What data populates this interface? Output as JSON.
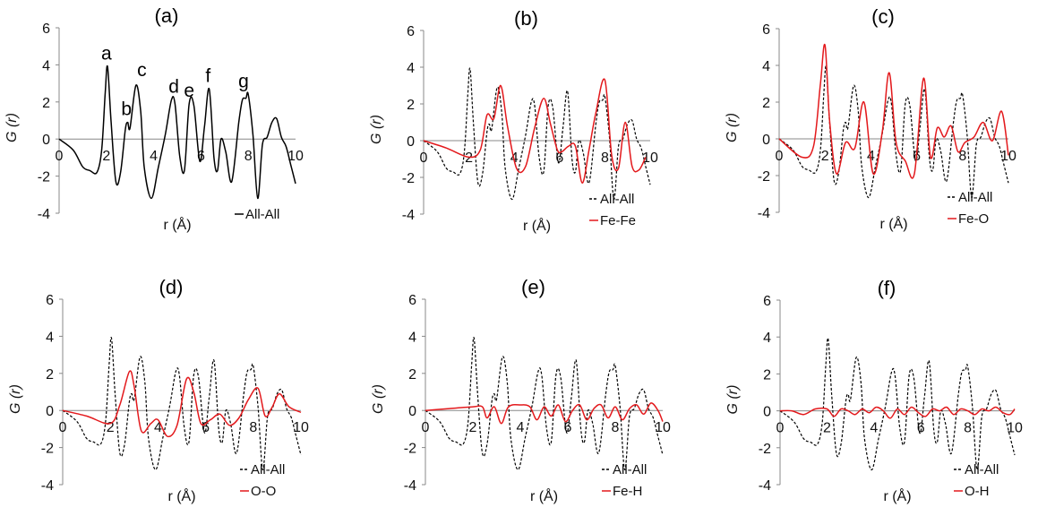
{
  "chart_data": [
    {
      "type": "line",
      "panel_label": "(a)",
      "xlabel": "r (Å)",
      "ylabel": "G (r)",
      "xlim": [
        0,
        10
      ],
      "ylim": [
        -4,
        6
      ],
      "x_ticks": [
        "0",
        "2",
        "4",
        "6",
        "8",
        "10"
      ],
      "y_ticks": [
        "6",
        "4",
        "2",
        "0",
        "-2",
        "-4"
      ],
      "legend_position": "bottom-right",
      "peak_labels": [
        {
          "text": "a",
          "x": 2.0,
          "y": 3.9
        },
        {
          "text": "b",
          "x": 2.85,
          "y": 0.9
        },
        {
          "text": "c",
          "x": 3.5,
          "y": 3.0
        },
        {
          "text": "d",
          "x": 4.85,
          "y": 2.1
        },
        {
          "text": "e",
          "x": 5.5,
          "y": 1.9
        },
        {
          "text": "f",
          "x": 6.3,
          "y": 2.7
        },
        {
          "text": "g",
          "x": 7.8,
          "y": 2.4
        }
      ],
      "series": [
        {
          "name": "All-All",
          "color": "#000000",
          "style": "solid",
          "x": "all_all.x",
          "y": "all_all.y"
        }
      ]
    },
    {
      "type": "line",
      "panel_label": "(b)",
      "xlabel": "r (Å)",
      "ylabel": "G (r)",
      "xlim": [
        0,
        10
      ],
      "ylim": [
        -4,
        6
      ],
      "x_ticks": [
        "0",
        "2",
        "4",
        "6",
        "8",
        "10"
      ],
      "y_ticks": [
        "6",
        "4",
        "2",
        "0",
        "-2",
        "-4"
      ],
      "legend_position": "bottom-right",
      "series": [
        {
          "name": "All-All",
          "color": "#000000",
          "style": "dashed",
          "x": "all_all.x",
          "y": "all_all.y"
        },
        {
          "name": "Fe-Fe",
          "color": "#e3191c",
          "style": "solid",
          "x": [
            0,
            1.0,
            2.0,
            2.5,
            2.8,
            3.1,
            3.4,
            3.7,
            4.1,
            4.5,
            4.9,
            5.3,
            5.6,
            5.9,
            6.1,
            6.4,
            6.7,
            7.0,
            7.3,
            7.6,
            8.0,
            8.3,
            8.6,
            8.9,
            9.2,
            9.5,
            9.8
          ],
          "y": [
            0,
            -0.4,
            -0.9,
            -0.5,
            1.4,
            1.2,
            3.0,
            0.8,
            -1.5,
            -1.4,
            0.7,
            2.3,
            0.9,
            -0.5,
            -0.6,
            -0.3,
            -0.3,
            -2.3,
            -0.5,
            1.5,
            3.3,
            -0.8,
            -1.5,
            1.0,
            -1.4,
            -1.6,
            -0.9
          ]
        }
      ]
    },
    {
      "type": "line",
      "panel_label": "(c)",
      "xlabel": "r (Å)",
      "ylabel": "G (r)",
      "xlim": [
        0,
        10
      ],
      "ylim": [
        -4,
        6
      ],
      "x_ticks": [
        "0",
        "2",
        "4",
        "6",
        "8",
        "10"
      ],
      "y_ticks": [
        "6",
        "4",
        "2",
        "0",
        "-2",
        "-4"
      ],
      "legend_position": "bottom-right",
      "series": [
        {
          "name": "All-All",
          "color": "#000000",
          "style": "dashed",
          "x": "all_all.x",
          "y": "all_all.y"
        },
        {
          "name": "Fe-O",
          "color": "#e3191c",
          "style": "solid",
          "x": [
            0,
            1.0,
            1.5,
            1.8,
            2.0,
            2.2,
            2.5,
            2.9,
            3.3,
            3.7,
            4.1,
            4.5,
            4.8,
            5.1,
            5.5,
            5.9,
            6.3,
            6.6,
            6.9,
            7.2,
            7.5,
            7.8,
            8.1,
            8.5,
            8.9,
            9.3,
            9.7,
            10.0
          ],
          "y": [
            0,
            -1.0,
            -0.4,
            3.0,
            5.1,
            1.0,
            -1.9,
            -0.2,
            -0.5,
            2.0,
            -1.9,
            0.4,
            3.6,
            -0.2,
            -1.2,
            -1.9,
            3.3,
            -1.0,
            0.6,
            0.1,
            0.7,
            -0.7,
            -0.2,
            0.1,
            0.9,
            -0.1,
            1.5,
            -0.9
          ]
        }
      ]
    },
    {
      "type": "line",
      "panel_label": "(d)",
      "xlabel": "r (Å)",
      "ylabel": "G (r)",
      "xlim": [
        0,
        10
      ],
      "ylim": [
        -4,
        6
      ],
      "x_ticks": [
        "0",
        "2",
        "4",
        "6",
        "8",
        "10"
      ],
      "y_ticks": [
        "6",
        "4",
        "2",
        "0",
        "-2",
        "-4"
      ],
      "legend_position": "bottom-right",
      "series": [
        {
          "name": "All-All",
          "color": "#000000",
          "style": "dashed",
          "x": "all_all.x",
          "y": "all_all.y"
        },
        {
          "name": "O-O",
          "color": "#e3191c",
          "style": "solid",
          "x": [
            0,
            1.0,
            2.0,
            2.4,
            2.8,
            3.0,
            3.3,
            3.7,
            4.0,
            4.4,
            4.8,
            5.2,
            5.5,
            5.8,
            6.2,
            6.6,
            7.0,
            7.4,
            7.8,
            8.2,
            8.5,
            8.8,
            9.1,
            9.5,
            10.0
          ],
          "y": [
            0,
            -0.3,
            -0.7,
            0.3,
            2.1,
            1.3,
            -1.1,
            -0.7,
            -0.5,
            -1.4,
            -0.8,
            1.7,
            1.0,
            -0.7,
            -0.5,
            -0.2,
            -0.8,
            -0.4,
            0.6,
            1.2,
            -0.3,
            0.2,
            0.9,
            0.2,
            -0.1
          ]
        }
      ]
    },
    {
      "type": "line",
      "panel_label": "(e)",
      "xlabel": "r (Å)",
      "ylabel": "G (r)",
      "xlim": [
        0,
        10
      ],
      "ylim": [
        -4,
        6
      ],
      "x_ticks": [
        "0",
        "2",
        "4",
        "6",
        "8",
        "10"
      ],
      "y_ticks": [
        "6",
        "4",
        "2",
        "0",
        "-2",
        "-4"
      ],
      "legend_position": "bottom-right",
      "series": [
        {
          "name": "All-All",
          "color": "#000000",
          "style": "dashed",
          "x": "all_all.x",
          "y": "all_all.y"
        },
        {
          "name": "Fe-H",
          "color": "#e3191c",
          "style": "solid",
          "x": [
            0,
            1.0,
            2.0,
            2.4,
            2.6,
            2.9,
            3.2,
            3.5,
            4.0,
            4.4,
            4.7,
            5.0,
            5.3,
            5.6,
            5.9,
            6.2,
            6.5,
            6.8,
            7.1,
            7.4,
            7.7,
            8.0,
            8.3,
            8.6,
            8.9,
            9.2,
            9.5,
            9.8,
            10.0
          ],
          "y": [
            0,
            0.1,
            0.2,
            0.2,
            -0.4,
            0.2,
            -0.7,
            0.2,
            0.3,
            0.2,
            -0.5,
            0.2,
            -0.3,
            0.3,
            -0.6,
            0.0,
            0.3,
            -0.5,
            0.1,
            0.3,
            -0.4,
            0.2,
            -0.5,
            0.1,
            0.3,
            -0.2,
            0.4,
            0.0,
            -0.6
          ]
        }
      ]
    },
    {
      "type": "line",
      "panel_label": "(f)",
      "xlabel": "r (Å)",
      "ylabel": "G (r)",
      "xlim": [
        0,
        10
      ],
      "ylim": [
        -4,
        6
      ],
      "x_ticks": [
        "0",
        "2",
        "4",
        "6",
        "8",
        "10"
      ],
      "y_ticks": [
        "6",
        "4",
        "2",
        "0",
        "-2",
        "-4"
      ],
      "legend_position": "bottom-right",
      "series": [
        {
          "name": "All-All",
          "color": "#000000",
          "style": "dashed",
          "x": "all_all.x",
          "y": "all_all.y"
        },
        {
          "name": "O-H",
          "color": "#e3191c",
          "style": "solid",
          "x": [
            0,
            0.5,
            1.0,
            1.5,
            2.0,
            2.3,
            2.6,
            2.9,
            3.2,
            3.5,
            3.8,
            4.1,
            4.4,
            4.7,
            5.0,
            5.3,
            5.6,
            5.9,
            6.2,
            6.5,
            6.8,
            7.1,
            7.4,
            7.7,
            8.0,
            8.3,
            8.6,
            8.9,
            9.2,
            9.5,
            9.8,
            10.0
          ],
          "y": [
            0,
            0.0,
            -0.2,
            0.1,
            0.1,
            -0.3,
            0.1,
            0.0,
            -0.2,
            0.1,
            -0.1,
            0.2,
            0.0,
            -0.4,
            0.1,
            -0.2,
            0.2,
            -0.1,
            -0.3,
            0.1,
            0.0,
            0.2,
            -0.2,
            0.1,
            0.0,
            -0.2,
            0.1,
            0.0,
            0.2,
            -0.1,
            -0.2,
            0.1
          ]
        }
      ]
    }
  ],
  "all_all": {
    "x": [
      0,
      0.6,
      1.0,
      1.3,
      1.6,
      1.8,
      1.95,
      2.05,
      2.2,
      2.4,
      2.6,
      2.8,
      2.9,
      3.0,
      3.25,
      3.45,
      3.6,
      3.9,
      4.2,
      4.5,
      4.75,
      4.9,
      5.1,
      5.3,
      5.5,
      5.7,
      5.95,
      6.15,
      6.35,
      6.55,
      6.7,
      6.85,
      7.05,
      7.3,
      7.6,
      7.75,
      7.9,
      8.0,
      8.2,
      8.4,
      8.6,
      8.8,
      9.0,
      9.2,
      9.4,
      9.6,
      9.8,
      10.0
    ],
    "y": [
      0,
      -0.6,
      -1.5,
      -1.7,
      -1.8,
      -0.6,
      2.5,
      3.9,
      0.9,
      -2.3,
      -1.8,
      0.5,
      0.9,
      0.6,
      2.9,
      1.5,
      -1.5,
      -3.2,
      -1.5,
      0.3,
      2.1,
      1.9,
      -0.9,
      -1.7,
      1.9,
      1.8,
      -1.2,
      0.7,
      2.7,
      -1.0,
      -1.7,
      0.0,
      -0.7,
      -2.3,
      0.9,
      2.1,
      2.2,
      2.4,
      0.2,
      -3.2,
      -0.3,
      0.1,
      0.9,
      1.1,
      0.1,
      -0.4,
      -1.4,
      -2.4
    ]
  }
}
